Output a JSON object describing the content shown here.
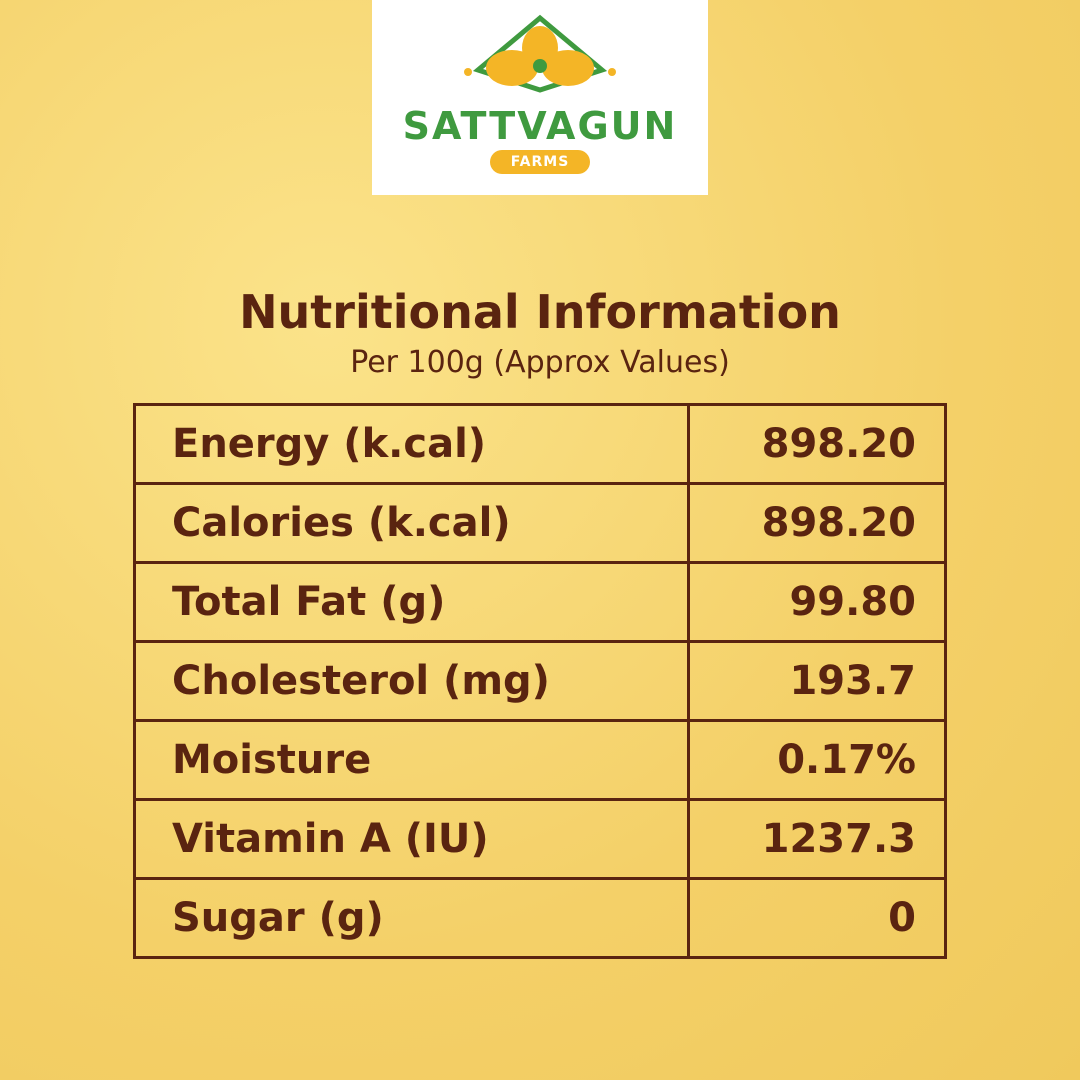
{
  "logo": {
    "name": "SATTVAGUN",
    "tag": "FARMS"
  },
  "header": {
    "title": "Nutritional Information",
    "subtitle": "Per 100g (Approx Values)"
  },
  "table": {
    "rows": [
      [
        "Energy (k.cal)",
        "898.20"
      ],
      [
        "Calories (k.cal)",
        "898.20"
      ],
      [
        "Total Fat (g)",
        "99.80"
      ],
      [
        "Cholesterol (mg)",
        "193.7"
      ],
      [
        "Moisture",
        "0.17%"
      ],
      [
        "Vitamin A (IU)",
        "1237.3"
      ],
      [
        "Sugar (g)",
        "0"
      ]
    ]
  }
}
